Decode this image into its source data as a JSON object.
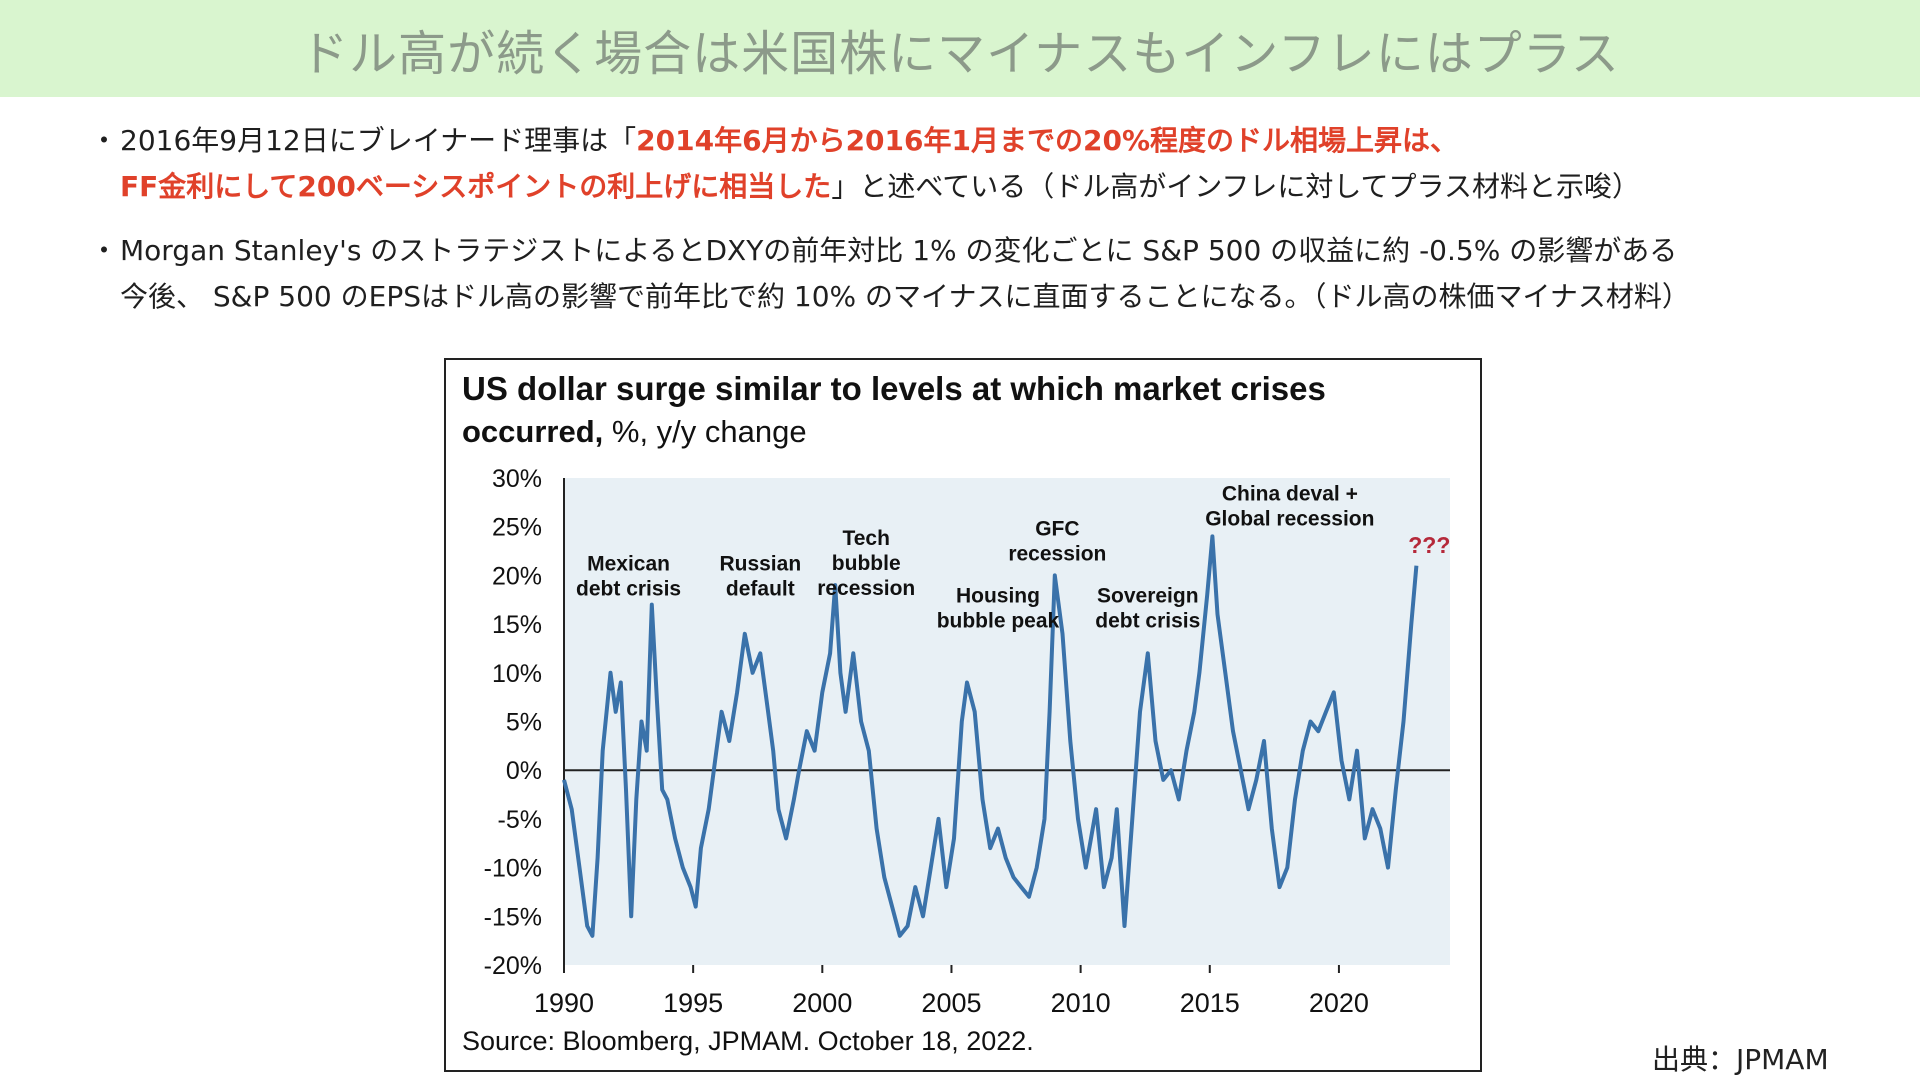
{
  "banner": {
    "title": "ドル高が続く場合は米国株にマイナスもインフレにはプラス"
  },
  "bullets": [
    {
      "marker": "・",
      "text_before": "2016年9月12日にブレイナード理事は「",
      "highlight_1": "2014年6月から2016年1月までの20%程度のドル相場上昇は、",
      "highlight_2": "FF金利にして200ベーシスポイントの利上げに相当した",
      "text_after": "」と述べている（ドル高がインフレに対してプラス材料と示唆）"
    },
    {
      "marker": "・",
      "line_1": "Morgan Stanley's のストラテジストによるとDXYの前年対比 1% の変化ごとに S&P 500 の収益に約 -0.5% の影響がある",
      "line_2": "今後、 S&P 500 のEPSはドル高の影響で前年比で約 10% のマイナスに直面することになる。（ドル高の株価マイナス材料）"
    }
  ],
  "source_credit": "出典：JPMAM",
  "chart_data": {
    "type": "line",
    "title": "US dollar surge similar to levels at which market crises",
    "title_line2_bold": "occurred,",
    "title_line2_rest": " %, y/y change",
    "source": "Source: Bloomberg, JPMAM. October 18, 2022.",
    "xlim": [
      1990,
      2024.3
    ],
    "ylim": [
      -20,
      30
    ],
    "x_ticks": [
      1990,
      1995,
      2000,
      2005,
      2010,
      2015,
      2020
    ],
    "x_tick_labels": [
      "1990",
      "1995",
      "2000",
      "2005",
      "2010",
      "2015",
      "2020"
    ],
    "y_ticks": [
      -20,
      -15,
      -10,
      -5,
      0,
      5,
      10,
      15,
      20,
      25,
      30
    ],
    "y_tick_labels": [
      "-20%",
      "-15%",
      "-10%",
      "-5%",
      "0%",
      "5%",
      "10%",
      "15%",
      "20%",
      "25%",
      "30%"
    ],
    "grid": false,
    "legend": "none",
    "colors": {
      "line": "#3a72aa",
      "plot_bg": "#e8f0f5",
      "zero_line": "#222222",
      "question": "#b5293a"
    },
    "series": [
      {
        "x": [
          1990.0,
          1990.3,
          1990.6,
          1990.9,
          1991.1,
          1991.3,
          1991.5,
          1991.8,
          1992.0,
          1992.2,
          1992.4,
          1992.6,
          1992.8,
          1993.0,
          1993.2,
          1993.4,
          1993.6,
          1993.8,
          1994.0,
          1994.3,
          1994.6,
          1994.9,
          1995.1,
          1995.3,
          1995.6,
          1995.9,
          1996.1,
          1996.4,
          1996.7,
          1997.0,
          1997.3,
          1997.6,
          1997.9,
          1998.1,
          1998.3,
          1998.6,
          1998.9,
          1999.1,
          1999.4,
          1999.7,
          2000.0,
          2000.3,
          2000.5,
          2000.7,
          2000.9,
          2001.2,
          2001.5,
          2001.8,
          2002.1,
          2002.4,
          2002.7,
          2003.0,
          2003.3,
          2003.6,
          2003.9,
          2004.2,
          2004.5,
          2004.8,
          2005.1,
          2005.4,
          2005.6,
          2005.9,
          2006.2,
          2006.5,
          2006.8,
          2007.1,
          2007.4,
          2007.7,
          2008.0,
          2008.3,
          2008.6,
          2008.8,
          2009.0,
          2009.3,
          2009.6,
          2009.9,
          2010.2,
          2010.4,
          2010.6,
          2010.9,
          2011.2,
          2011.4,
          2011.7,
          2012.0,
          2012.3,
          2012.6,
          2012.9,
          2013.2,
          2013.5,
          2013.8,
          2014.1,
          2014.4,
          2014.6,
          2014.9,
          2015.1,
          2015.3,
          2015.6,
          2015.9,
          2016.2,
          2016.5,
          2016.8,
          2017.1,
          2017.4,
          2017.7,
          2018.0,
          2018.3,
          2018.6,
          2018.9,
          2019.2,
          2019.5,
          2019.8,
          2020.1,
          2020.4,
          2020.7,
          2021.0,
          2021.3,
          2021.6,
          2021.9,
          2022.2,
          2022.5,
          2022.8,
          2023.0
        ],
        "y": [
          -1,
          -4,
          -10,
          -16,
          -17,
          -9,
          2,
          10,
          6,
          9,
          -2,
          -15,
          -3,
          5,
          2,
          17,
          7,
          -2,
          -3,
          -7,
          -10,
          -12,
          -14,
          -8,
          -4,
          2,
          6,
          3,
          8,
          14,
          10,
          12,
          6,
          2,
          -4,
          -7,
          -3,
          0,
          4,
          2,
          8,
          12,
          19,
          10,
          6,
          12,
          5,
          2,
          -6,
          -11,
          -14,
          -17,
          -16,
          -12,
          -15,
          -10,
          -5,
          -12,
          -7,
          5,
          9,
          6,
          -3,
          -8,
          -6,
          -9,
          -11,
          -12,
          -13,
          -10,
          -5,
          6,
          20,
          14,
          3,
          -5,
          -10,
          -7,
          -4,
          -12,
          -9,
          -4,
          -16,
          -5,
          6,
          12,
          3,
          -1,
          0,
          -3,
          2,
          6,
          10,
          18,
          24,
          16,
          10,
          4,
          0,
          -4,
          -1,
          3,
          -6,
          -12,
          -10,
          -3,
          2,
          5,
          4,
          6,
          8,
          1,
          -3,
          2,
          -7,
          -4,
          -6,
          -10,
          -2,
          5,
          15,
          21
        ]
      }
    ],
    "annotations": [
      {
        "lines": [
          "Mexican",
          "debt crisis"
        ],
        "x": 1992.5,
        "y": 20.5
      },
      {
        "lines": [
          "Russian",
          "default"
        ],
        "x": 1997.6,
        "y": 20.5
      },
      {
        "lines": [
          "Tech",
          "bubble",
          "recession"
        ],
        "x": 2001.7,
        "y": 23.1
      },
      {
        "lines": [
          "Housing",
          "bubble peak"
        ],
        "x": 2006.8,
        "y": 17.2
      },
      {
        "lines": [
          "GFC",
          "recession"
        ],
        "x": 2009.1,
        "y": 24.1
      },
      {
        "lines": [
          "Sovereign",
          "debt crisis"
        ],
        "x": 2012.6,
        "y": 17.2
      },
      {
        "lines": [
          "China deval +",
          "Global recession"
        ],
        "x": 2018.1,
        "y": 27.7
      },
      {
        "lines": [
          "???"
        ],
        "x": 2023.5,
        "y": 22.3,
        "style": "question"
      }
    ]
  }
}
